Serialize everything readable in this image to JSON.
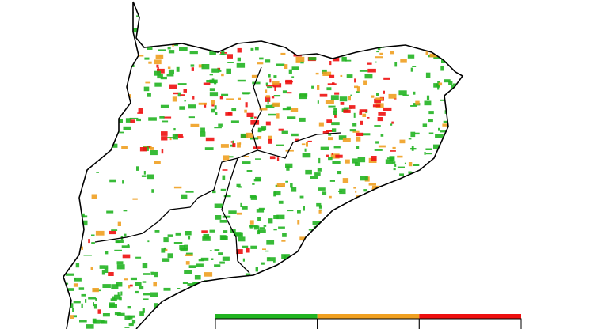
{
  "legend": {
    "items": [
      {
        "color": "#22b422"
      },
      {
        "color": "#f0a021"
      },
      {
        "color": "#ee1010"
      }
    ]
  }
}
